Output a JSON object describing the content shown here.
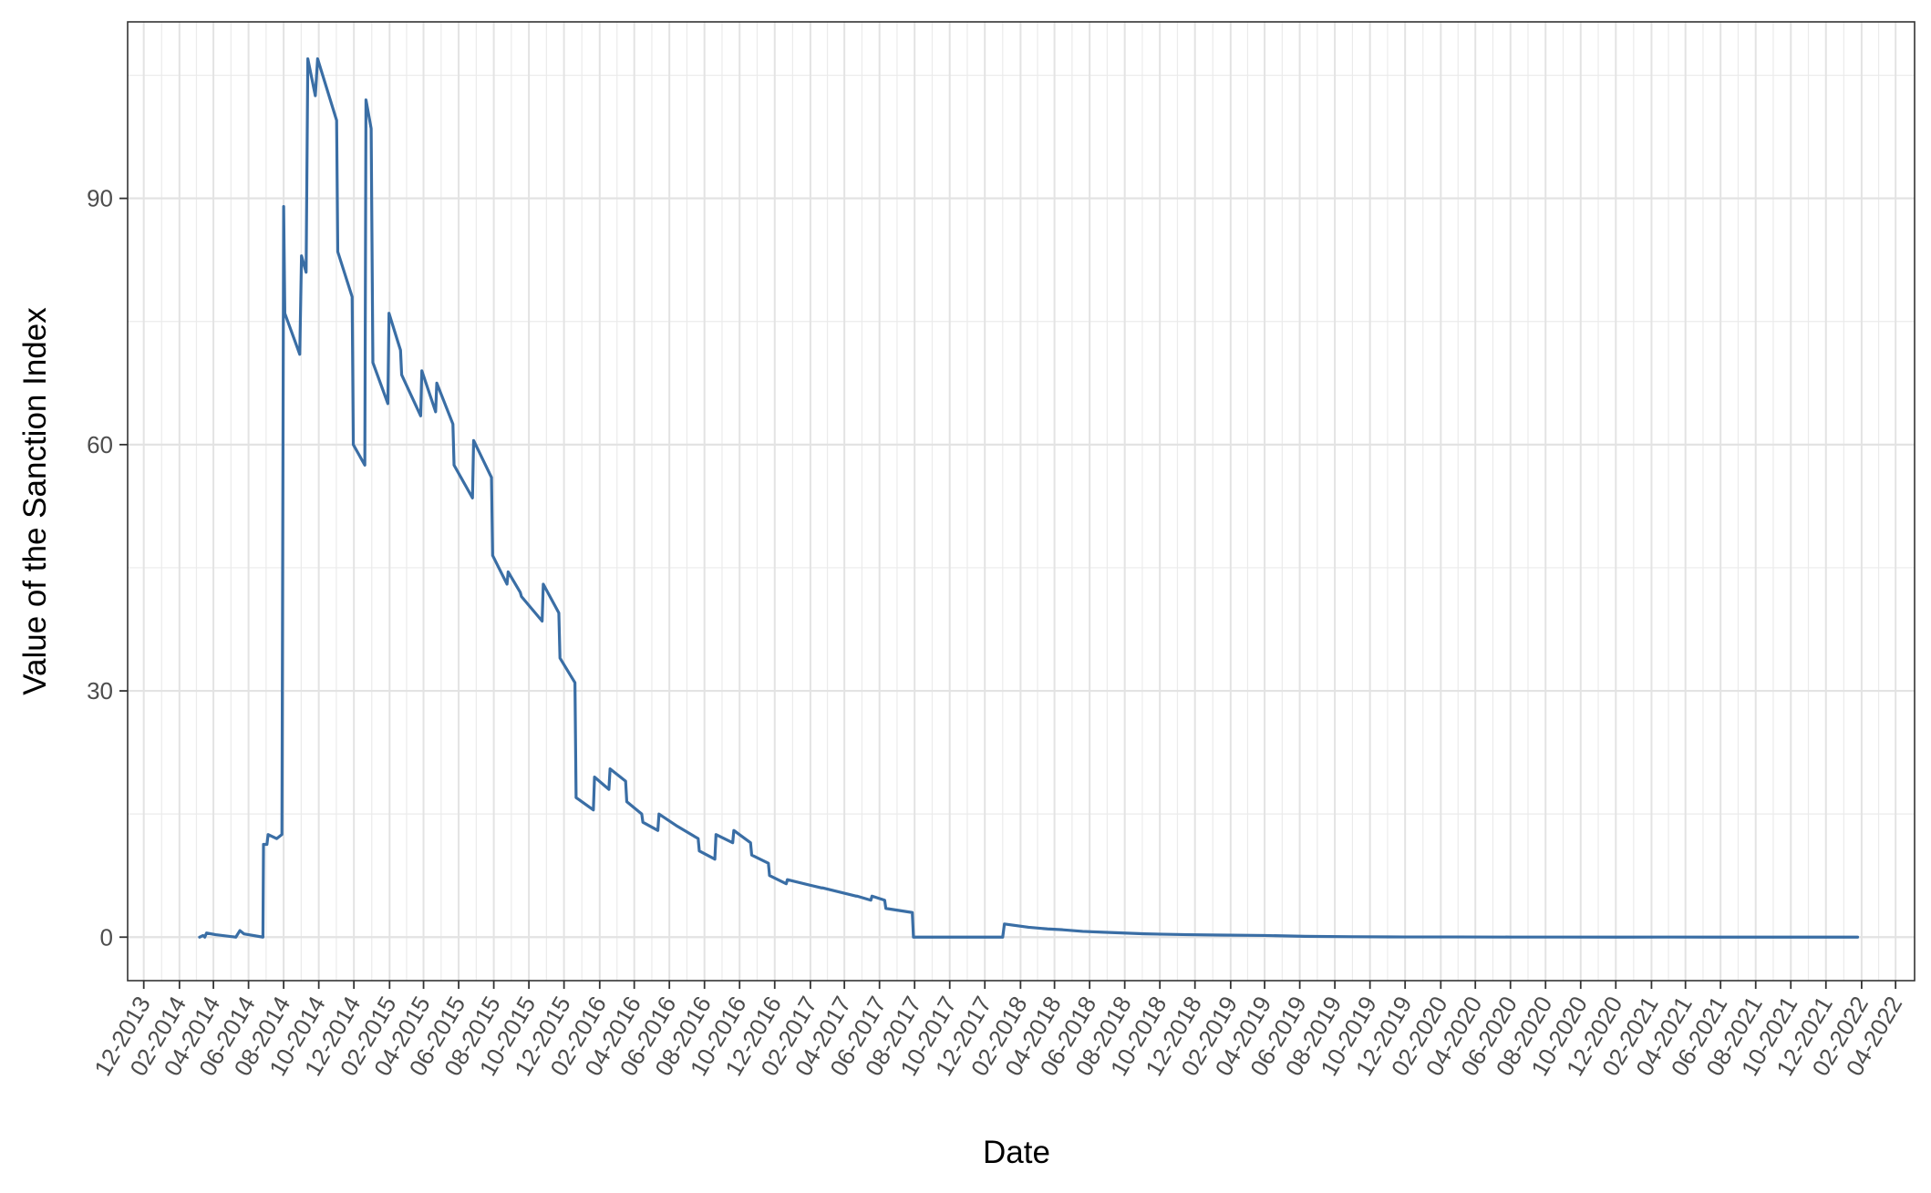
{
  "chart_data": {
    "type": "line",
    "title": "",
    "xlabel": "Date",
    "ylabel": "Value of the Sanction Index",
    "x_axis": {
      "kind": "date",
      "range": [
        "2013-11-03",
        "2022-05-04"
      ],
      "tick_labels": [
        "12-2013",
        "02-2014",
        "04-2014",
        "06-2014",
        "08-2014",
        "10-2014",
        "12-2014",
        "02-2015",
        "04-2015",
        "06-2015",
        "08-2015",
        "10-2015",
        "12-2015",
        "02-2016",
        "04-2016",
        "06-2016",
        "08-2016",
        "10-2016",
        "12-2016",
        "02-2017",
        "04-2017",
        "06-2017",
        "08-2017",
        "10-2017",
        "12-2017",
        "02-2018",
        "04-2018",
        "06-2018",
        "08-2018",
        "10-2018",
        "12-2018",
        "02-2019",
        "04-2019",
        "06-2019",
        "08-2019",
        "10-2019",
        "12-2019",
        "02-2020",
        "04-2020",
        "06-2020",
        "08-2020",
        "10-2020",
        "12-2020",
        "02-2021",
        "04-2021",
        "06-2021",
        "08-2021",
        "10-2021",
        "12-2021",
        "02-2022",
        "04-2022"
      ],
      "tick_label_rotation_deg": 60
    },
    "ylim": [
      -5.3,
      111.5
    ],
    "y_ticks": [
      0,
      30,
      60,
      90
    ],
    "y_minor_ticks": [
      15,
      45,
      75,
      105
    ],
    "grid": true,
    "legend": "none",
    "series": [
      {
        "color": "#3a6ea5",
        "points": [
          [
            "2014-03-08",
            0.0
          ],
          [
            "2014-03-14",
            0.2
          ],
          [
            "2014-03-17",
            0.0
          ],
          [
            "2014-03-20",
            0.5
          ],
          [
            "2014-04-05",
            0.3
          ],
          [
            "2014-05-10",
            0.0
          ],
          [
            "2014-05-17",
            0.8
          ],
          [
            "2014-05-24",
            0.4
          ],
          [
            "2014-06-26",
            0.0
          ],
          [
            "2014-06-27",
            11.3
          ],
          [
            "2014-07-03",
            11.3
          ],
          [
            "2014-07-05",
            12.5
          ],
          [
            "2014-07-20",
            12.0
          ],
          [
            "2014-07-29",
            12.5
          ],
          [
            "2014-08-01",
            89.0
          ],
          [
            "2014-08-03",
            76.0
          ],
          [
            "2014-08-29",
            71.0
          ],
          [
            "2014-09-01",
            83.0
          ],
          [
            "2014-09-09",
            81.0
          ],
          [
            "2014-09-12",
            107.0
          ],
          [
            "2014-09-25",
            102.5
          ],
          [
            "2014-09-29",
            107.0
          ],
          [
            "2014-11-01",
            99.5
          ],
          [
            "2014-11-03",
            83.5
          ],
          [
            "2014-11-28",
            78.0
          ],
          [
            "2014-11-30",
            60.0
          ],
          [
            "2014-12-20",
            57.5
          ],
          [
            "2014-12-22",
            102.0
          ],
          [
            "2014-12-31",
            98.5
          ],
          [
            "2015-01-03",
            70.0
          ],
          [
            "2015-01-29",
            65.0
          ],
          [
            "2015-01-31",
            76.0
          ],
          [
            "2015-02-20",
            71.5
          ],
          [
            "2015-02-22",
            68.5
          ],
          [
            "2015-03-27",
            63.5
          ],
          [
            "2015-03-29",
            69.0
          ],
          [
            "2015-04-22",
            64.0
          ],
          [
            "2015-04-24",
            67.5
          ],
          [
            "2015-05-22",
            62.5
          ],
          [
            "2015-05-24",
            57.5
          ],
          [
            "2015-06-25",
            53.5
          ],
          [
            "2015-06-27",
            60.5
          ],
          [
            "2015-07-28",
            56.0
          ],
          [
            "2015-07-30",
            46.5
          ],
          [
            "2015-08-24",
            43.0
          ],
          [
            "2015-08-26",
            44.5
          ],
          [
            "2015-09-16",
            42.0
          ],
          [
            "2015-09-18",
            41.5
          ],
          [
            "2015-10-24",
            38.5
          ],
          [
            "2015-10-26",
            43.0
          ],
          [
            "2015-11-22",
            39.5
          ],
          [
            "2015-11-24",
            34.0
          ],
          [
            "2015-12-20",
            31.0
          ],
          [
            "2015-12-22",
            17.0
          ],
          [
            "2016-01-21",
            15.5
          ],
          [
            "2016-01-23",
            19.5
          ],
          [
            "2016-02-17",
            18.0
          ],
          [
            "2016-02-19",
            20.5
          ],
          [
            "2016-03-17",
            19.0
          ],
          [
            "2016-03-19",
            16.5
          ],
          [
            "2016-04-14",
            15.0
          ],
          [
            "2016-04-16",
            14.0
          ],
          [
            "2016-05-12",
            13.0
          ],
          [
            "2016-05-14",
            15.0
          ],
          [
            "2016-06-15",
            13.5
          ],
          [
            "2016-07-21",
            12.0
          ],
          [
            "2016-07-23",
            10.5
          ],
          [
            "2016-08-19",
            9.5
          ],
          [
            "2016-08-21",
            12.5
          ],
          [
            "2016-09-19",
            11.5
          ],
          [
            "2016-09-21",
            13.0
          ],
          [
            "2016-10-20",
            11.5
          ],
          [
            "2016-10-22",
            10.0
          ],
          [
            "2016-11-20",
            9.0
          ],
          [
            "2016-11-22",
            7.5
          ],
          [
            "2016-12-21",
            6.5
          ],
          [
            "2016-12-23",
            7.0
          ],
          [
            "2017-02-20",
            6.0
          ],
          [
            "2017-02-22",
            6.0
          ],
          [
            "2017-04-21",
            5.0
          ],
          [
            "2017-04-23",
            5.0
          ],
          [
            "2017-05-17",
            4.5
          ],
          [
            "2017-05-19",
            5.0
          ],
          [
            "2017-06-10",
            4.5
          ],
          [
            "2017-06-12",
            3.5
          ],
          [
            "2017-07-28",
            3.0
          ],
          [
            "2017-07-30",
            0.0
          ],
          [
            "2018-01-01",
            0.0
          ],
          [
            "2018-01-04",
            1.6
          ],
          [
            "2018-02-15",
            1.2
          ],
          [
            "2018-03-20",
            1.0
          ],
          [
            "2018-04-15",
            0.9
          ],
          [
            "2018-05-20",
            0.7
          ],
          [
            "2018-06-25",
            0.6
          ],
          [
            "2018-09-05",
            0.4
          ],
          [
            "2018-11-20",
            0.3
          ],
          [
            "2019-01-15",
            0.25
          ],
          [
            "2019-04-01",
            0.2
          ],
          [
            "2019-06-10",
            0.1
          ],
          [
            "2019-09-01",
            0.05
          ],
          [
            "2019-12-01",
            0.02
          ],
          [
            "2020-03-01",
            0.02
          ],
          [
            "2020-06-01",
            0.01
          ],
          [
            "2020-09-01",
            0.01
          ],
          [
            "2020-12-01",
            0.0
          ],
          [
            "2021-03-01",
            0.01
          ],
          [
            "2021-06-01",
            0.0
          ],
          [
            "2021-09-01",
            0.0
          ],
          [
            "2021-12-01",
            0.0
          ],
          [
            "2022-01-25",
            0.0
          ]
        ]
      }
    ]
  }
}
